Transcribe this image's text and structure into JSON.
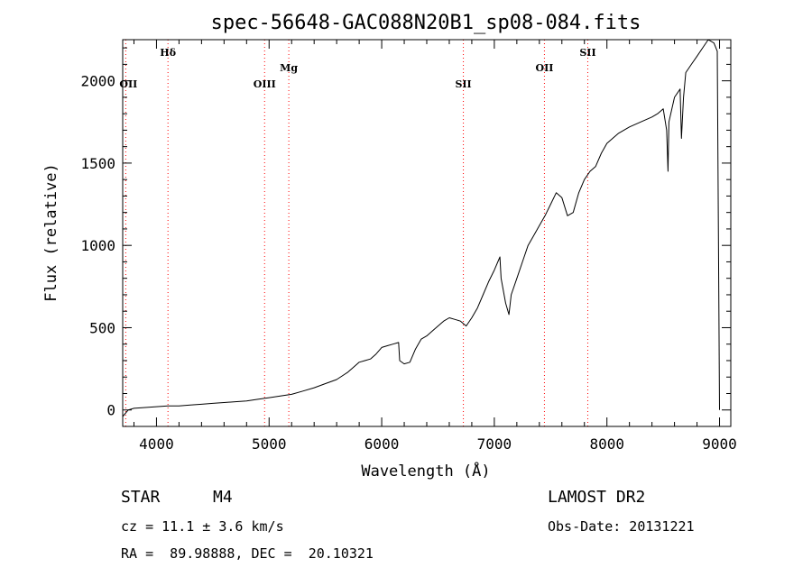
{
  "chart_data": {
    "type": "line",
    "title": "spec-56648-GAC088N20B1_sp08-084.fits",
    "xlabel": "Wavelength (Å)",
    "ylabel": "Flux (relative)",
    "xlim": [
      3700,
      9100
    ],
    "ylim": [
      -100,
      2250
    ],
    "x_ticks": [
      4000,
      5000,
      6000,
      7000,
      8000,
      9000
    ],
    "y_ticks": [
      0,
      500,
      1000,
      1500,
      2000
    ],
    "x_tick_labels": [
      "4000",
      "5000",
      "6000",
      "7000",
      "8000",
      "9000"
    ],
    "y_tick_labels": [
      "0",
      "500",
      "1000",
      "1500",
      "2000"
    ],
    "grid": false,
    "line_color": "#000000",
    "marker_color": "#ff0000",
    "series": [
      {
        "x": [
          3700,
          3750,
          3800,
          3900,
          4000,
          4100,
          4200,
          4300,
          4400,
          4500,
          4600,
          4700,
          4800,
          4900,
          5000,
          5100,
          5200,
          5300,
          5400,
          5500,
          5600,
          5700,
          5750,
          5800,
          5850,
          5900,
          5950,
          6000,
          6050,
          6100,
          6150,
          6160,
          6200,
          6250,
          6300,
          6350,
          6400,
          6450,
          6500,
          6550,
          6600,
          6650,
          6700,
          6750,
          6800,
          6850,
          6900,
          6950,
          7000,
          7050,
          7060,
          7100,
          7130,
          7150,
          7200,
          7250,
          7300,
          7350,
          7400,
          7450,
          7500,
          7550,
          7600,
          7650,
          7700,
          7750,
          7800,
          7850,
          7900,
          7950,
          8000,
          8100,
          8200,
          8300,
          8400,
          8450,
          8500,
          8530,
          8542,
          8550,
          8600,
          8650,
          8662,
          8680,
          8700,
          8750,
          8800,
          8850,
          8900,
          8950,
          8980,
          9000
        ],
        "y": [
          -40,
          0,
          10,
          15,
          20,
          25,
          25,
          30,
          35,
          40,
          45,
          50,
          55,
          65,
          75,
          85,
          95,
          115,
          135,
          160,
          185,
          230,
          260,
          290,
          300,
          310,
          340,
          380,
          390,
          400,
          410,
          300,
          280,
          290,
          370,
          430,
          450,
          480,
          510,
          540,
          560,
          550,
          540,
          510,
          560,
          620,
          700,
          780,
          850,
          930,
          800,
          650,
          580,
          700,
          800,
          900,
          1000,
          1060,
          1120,
          1180,
          1250,
          1320,
          1290,
          1180,
          1200,
          1320,
          1400,
          1450,
          1480,
          1560,
          1620,
          1680,
          1720,
          1750,
          1780,
          1800,
          1830,
          1700,
          1450,
          1750,
          1900,
          1950,
          1650,
          1900,
          2050,
          2100,
          2150,
          2200,
          2250,
          2230,
          2180,
          0
        ]
      }
    ],
    "markers": [
      {
        "label": "Hδ",
        "x": 4102
      },
      {
        "label": "OII",
        "x": 3727
      },
      {
        "label": "OIII",
        "x": 4960
      },
      {
        "label": "Mg",
        "x": 5175
      },
      {
        "label": "SII",
        "x": 6725
      },
      {
        "label": "OII",
        "x": 7445
      },
      {
        "label": "SII",
        "x": 7830
      }
    ]
  },
  "footer": {
    "object_class": "STAR",
    "subclass": "M4",
    "survey": "LAMOST DR2",
    "redshift": "cz = 11.1 ± 3.6 km/s",
    "obs_date": "Obs-Date: 20131221",
    "coordinates": "RA =  89.98888, DEC =  20.10321"
  }
}
